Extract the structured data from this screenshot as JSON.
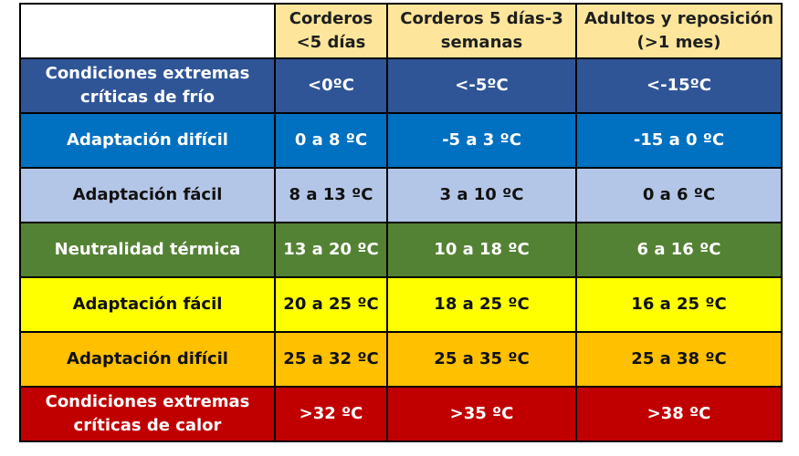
{
  "header": {
    "col1": [
      "Corderos",
      "<5 días"
    ],
    "col2": [
      "Corderos 5 días-3",
      "semanas"
    ],
    "col3": [
      "Adultos y reposición",
      "(>1 mes)"
    ]
  },
  "rows": [
    {
      "label": [
        "Condiciones extremas",
        "críticas de frío"
      ],
      "values": [
        "<0ºC",
        "<-5ºC",
        "<-15ºC"
      ],
      "bg": "#2f5597",
      "text": "#ffffff"
    },
    {
      "label": [
        "Adaptación difícil"
      ],
      "values": [
        "0 a 8 ºC",
        "-5 a 3 ºC",
        "-15 a 0 ºC"
      ],
      "bg": "#0070c0",
      "text": "#ffffff"
    },
    {
      "label": [
        "Adaptación fácil"
      ],
      "values": [
        "8 a 13 ºC",
        "3 a 10  ºC",
        "0 a 6  ºC"
      ],
      "bg": "#b4c6e7",
      "text": "#111111"
    },
    {
      "label": [
        "Neutralidad térmica"
      ],
      "values": [
        "13 a 20 ºC",
        "10 a 18  ºC",
        "6 a 16  ºC"
      ],
      "bg": "#548235",
      "text": "#ffffff"
    },
    {
      "label": [
        "Adaptación fácil"
      ],
      "values": [
        "20 a 25 ºC",
        "18 a 25  ºC",
        "16 a 25  ºC"
      ],
      "bg": "#ffff00",
      "text": "#111111"
    },
    {
      "label": [
        "Adaptación difícil"
      ],
      "values": [
        "25 a 32 ºC",
        "25 a 35  ºC",
        "25 a 38  ºC"
      ],
      "bg": "#ffc000",
      "text": "#111111"
    },
    {
      "label": [
        "Condiciones extremas",
        "críticas de calor"
      ],
      "values": [
        ">32 ºC",
        ">35 ºC",
        ">38 ºC"
      ],
      "bg": "#c00000",
      "text": "#ffffff"
    }
  ]
}
